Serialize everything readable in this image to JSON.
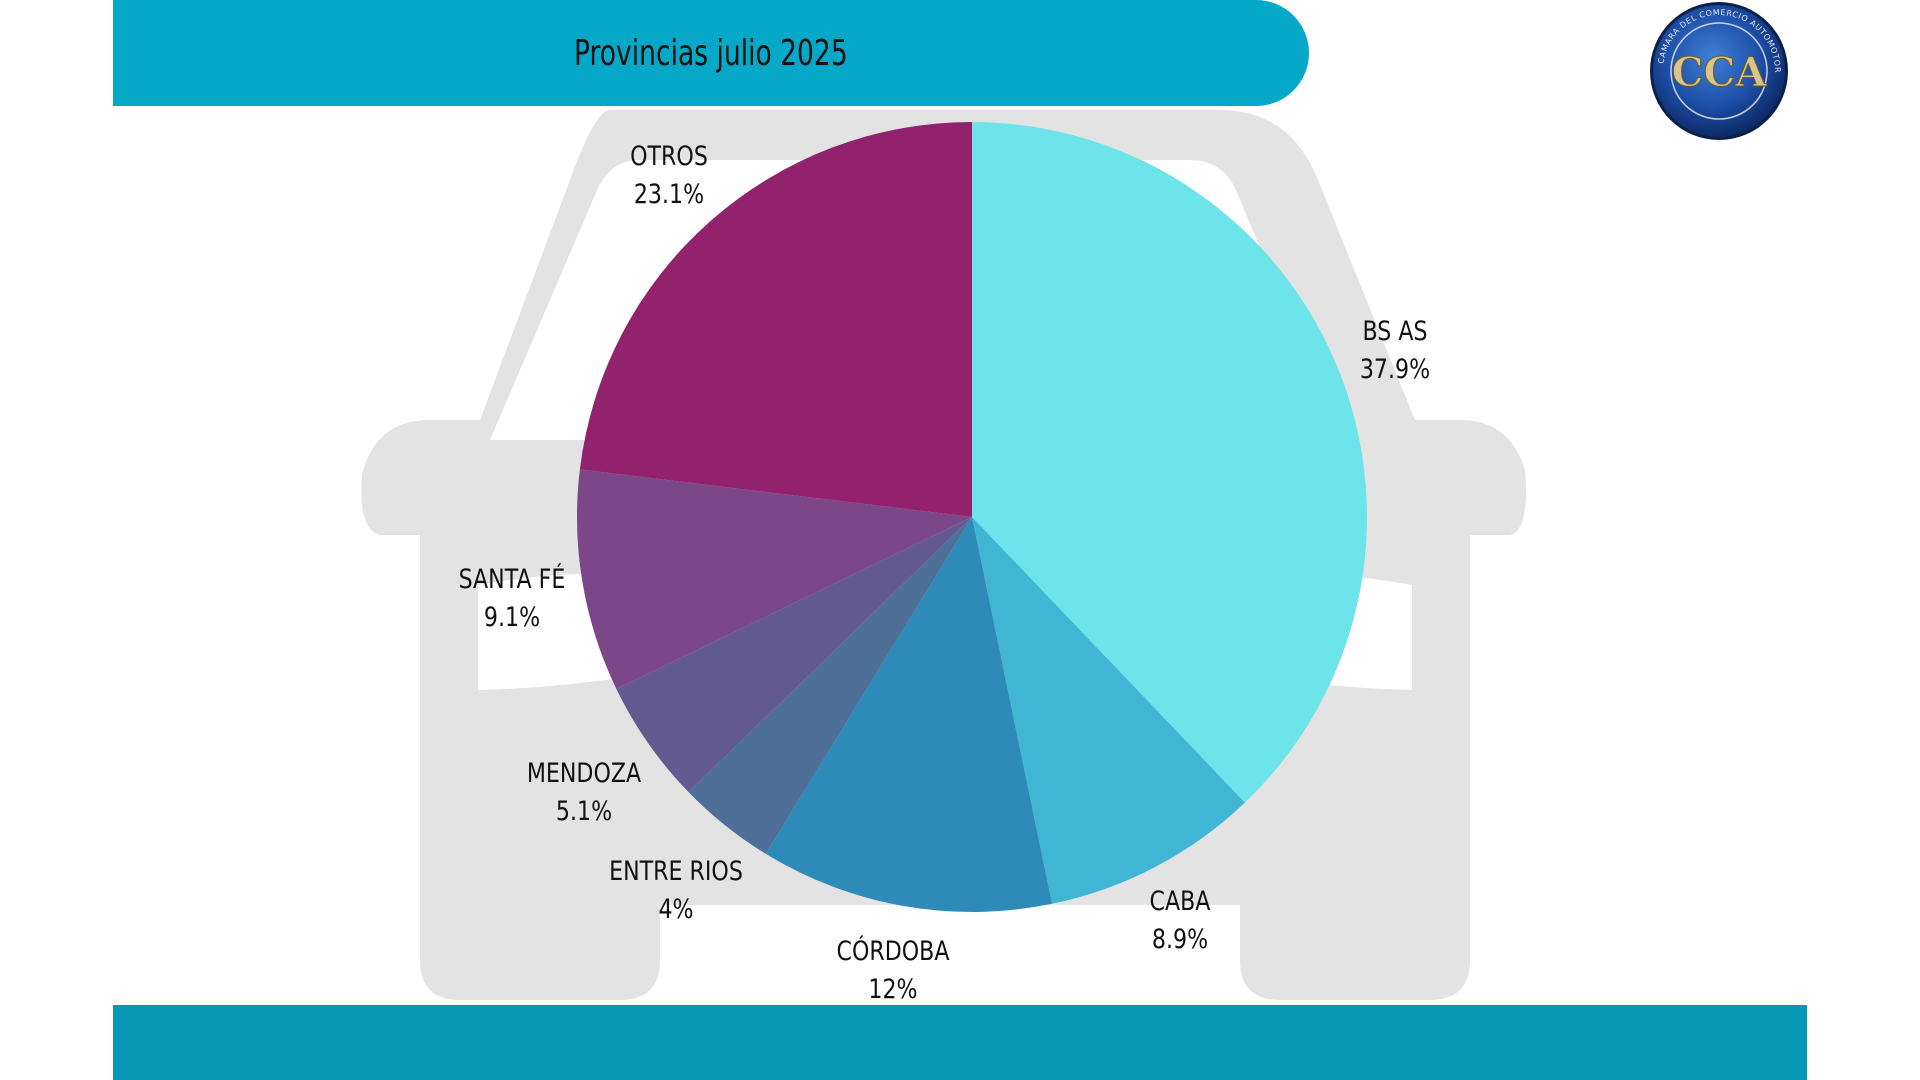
{
  "header": {
    "title": "Provincias julio 2025",
    "color": "#05a9c7"
  },
  "footer": {
    "color": "#0597b4"
  },
  "logo": {
    "icon": "cca-logo-icon",
    "initials": "CCA",
    "ring_text": "CAMARA DEL COMERCIO AUTOMOTOR"
  },
  "background_icon": "car-silhouette-icon",
  "chart_data": {
    "type": "pie",
    "title": "Provincias julio 2025",
    "start_angle_deg": 0,
    "direction": "clockwise",
    "slices": [
      {
        "label": "BS AS",
        "value": 37.9,
        "value_label": "37.9%",
        "color": "#6ce4e9"
      },
      {
        "label": "CABA",
        "value": 8.9,
        "value_label": "8.9%",
        "color": "#41b5d4"
      },
      {
        "label": "CÓRDOBA",
        "value": 12,
        "value_label": "12%",
        "color": "#2e8ab8"
      },
      {
        "label": "ENTRE RIOS",
        "value": 4,
        "value_label": "4%",
        "color": "#4d6f98"
      },
      {
        "label": "MENDOZA",
        "value": 5.1,
        "value_label": "5.1%",
        "color": "#635b8f"
      },
      {
        "label": "SANTA FÉ",
        "value": 9.1,
        "value_label": "9.1%",
        "color": "#7c4789"
      },
      {
        "label": "OTROS",
        "value": 23.1,
        "value_label": "23.1%",
        "color": "#92226d"
      }
    ]
  }
}
